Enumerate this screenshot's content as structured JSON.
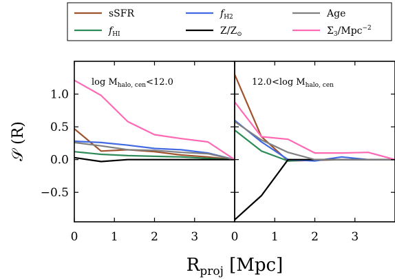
{
  "chart_data": [
    {
      "type": "line",
      "panel": "left",
      "annotation": {
        "prefix": "log M",
        "sub": "halo, cen",
        "suffix": "<12.0"
      },
      "xlim": [
        0,
        4
      ],
      "ylim": [
        -0.95,
        1.5
      ],
      "xticks": [
        "0",
        "1",
        "2",
        "3"
      ],
      "yticks": [
        "1.0",
        "0.5",
        "0.0",
        "−0.5"
      ],
      "x": [
        0,
        0.667,
        1.333,
        2.0,
        2.667,
        3.333,
        4.0
      ],
      "series": [
        {
          "name": "sSFR",
          "color": "#a0522d",
          "values": [
            0.47,
            0.13,
            0.15,
            0.12,
            0.07,
            0.04,
            0.0
          ]
        },
        {
          "name": "f_HI",
          "color": "#2e8b57",
          "values": [
            0.12,
            0.08,
            0.06,
            0.05,
            0.04,
            0.02,
            0.0
          ]
        },
        {
          "name": "f_H2",
          "color": "#4169e1",
          "values": [
            0.28,
            0.26,
            0.22,
            0.17,
            0.15,
            0.1,
            0.0
          ]
        },
        {
          "name": "Z/Z_sun",
          "color": "#000000",
          "values": [
            0.03,
            -0.03,
            0.0,
            0.0,
            0.0,
            0.0,
            0.0
          ]
        },
        {
          "name": "Age",
          "color": "#808080",
          "values": [
            0.26,
            0.21,
            0.15,
            0.14,
            0.11,
            0.09,
            0.0
          ]
        },
        {
          "name": "Sigma_3/Mpc^-2",
          "color": "#ff69b4",
          "values": [
            1.21,
            0.98,
            0.58,
            0.38,
            0.32,
            0.27,
            0.0
          ]
        }
      ]
    },
    {
      "type": "line",
      "panel": "right",
      "annotation": {
        "prefix": "12.0<log M",
        "sub": "halo, cen",
        "suffix": ""
      },
      "xlim": [
        0,
        4
      ],
      "ylim": [
        -0.95,
        1.5
      ],
      "xticks": [
        "0",
        "1",
        "2",
        "3"
      ],
      "yticks": [],
      "x": [
        0,
        0.667,
        1.333,
        2.0,
        2.667,
        3.333,
        4.0
      ],
      "series": [
        {
          "name": "sSFR",
          "color": "#a0522d",
          "values": [
            1.3,
            0.35,
            -0.02,
            -0.01,
            0.0,
            0.0,
            0.0
          ]
        },
        {
          "name": "f_HI",
          "color": "#2e8b57",
          "values": [
            0.45,
            0.13,
            -0.02,
            0.0,
            0.0,
            0.0,
            0.0
          ]
        },
        {
          "name": "f_H2",
          "color": "#4169e1",
          "values": [
            0.6,
            0.27,
            0.0,
            -0.02,
            0.04,
            0.0,
            0.0
          ]
        },
        {
          "name": "Z/Z_sun",
          "color": "#000000",
          "values": [
            -0.92,
            -0.55,
            0.0,
            0.0,
            0.0,
            0.0,
            0.0
          ]
        },
        {
          "name": "Age",
          "color": "#808080",
          "values": [
            0.58,
            0.3,
            0.11,
            0.0,
            0.0,
            0.0,
            0.0
          ]
        },
        {
          "name": "Sigma_3/Mpc^-2",
          "color": "#ff69b4",
          "values": [
            0.88,
            0.35,
            0.31,
            0.1,
            0.1,
            0.11,
            0.0
          ]
        }
      ]
    }
  ],
  "legend": {
    "placement": "top",
    "entries": [
      {
        "label": "sSFR",
        "sub": "",
        "italic": false,
        "color": "#a0522d"
      },
      {
        "label": "f",
        "sub": "H2",
        "italic": true,
        "color": "#4169e1"
      },
      {
        "label": "Age",
        "sub": "",
        "italic": false,
        "color": "#808080"
      },
      {
        "label": "f",
        "sub": "HI",
        "italic": true,
        "color": "#2e8b57"
      },
      {
        "label": "Z/Z",
        "sub": "⊙",
        "italic": false,
        "color": "#000000"
      },
      {
        "label": "Σ",
        "sub": "3",
        "italic": false,
        "color": "#ff69b4",
        "tail": "/Mpc",
        "sup": "−2"
      }
    ]
  },
  "ylabel": {
    "main": "𝒮 (R)"
  },
  "xlabel": {
    "main": "R",
    "sub": "proj",
    "tail": " [Mpc]"
  }
}
